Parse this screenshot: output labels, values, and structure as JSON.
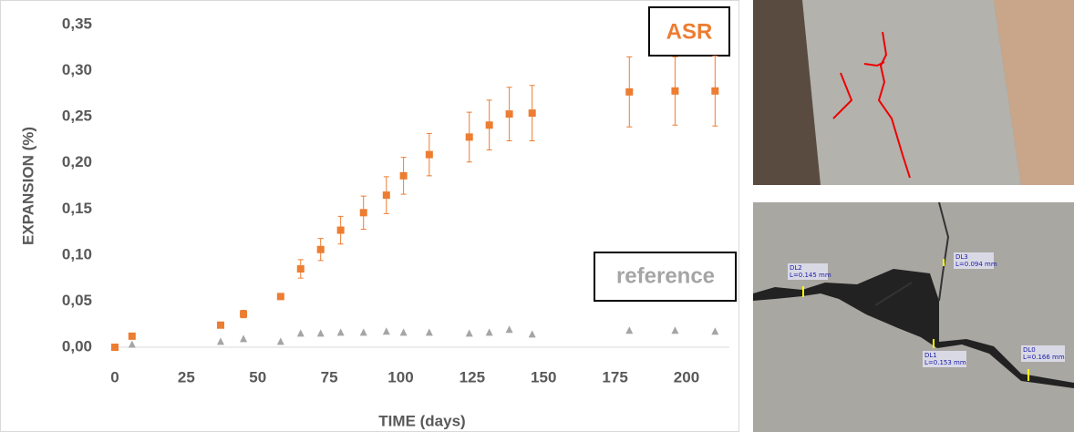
{
  "chart_data": {
    "type": "scatter",
    "x_label": "TIME (days)",
    "y_label": "EXPANSION (%)",
    "xlim": [
      0,
      215
    ],
    "xticks": [
      0,
      25,
      50,
      75,
      100,
      125,
      150,
      175,
      200
    ],
    "ylim": [
      0,
      0.35
    ],
    "yticks": [
      {
        "value": 0,
        "label": "0,00"
      },
      {
        "value": 0.05,
        "label": "0,05"
      },
      {
        "value": 0.1,
        "label": "0,10"
      },
      {
        "value": 0.15,
        "label": "0,15"
      },
      {
        "value": 0.2,
        "label": "0,20"
      },
      {
        "value": 0.25,
        "label": "0,25"
      },
      {
        "value": 0.3,
        "label": "0,30"
      },
      {
        "value": 0.35,
        "label": "0,35"
      }
    ],
    "grid": false,
    "series": [
      {
        "name": "ASR",
        "color": "#ed7d31",
        "marker": "square",
        "x": [
          0,
          6,
          37,
          45,
          58,
          65,
          72,
          79,
          87,
          95,
          101,
          110,
          124,
          131,
          138,
          146,
          180,
          196,
          210
        ],
        "values": [
          0,
          0.012,
          0.024,
          0.036,
          0.055,
          0.085,
          0.106,
          0.127,
          0.146,
          0.165,
          0.186,
          0.209,
          0.228,
          0.241,
          0.253,
          0.254,
          0.277,
          0.278,
          0.278
        ],
        "errors": [
          0.001,
          0.002,
          0.002,
          0.004,
          0.002,
          0.01,
          0.012,
          0.015,
          0.018,
          0.02,
          0.02,
          0.023,
          0.027,
          0.027,
          0.029,
          0.03,
          0.038,
          0.037,
          0.038
        ]
      },
      {
        "name": "reference",
        "color": "#a5a5a5",
        "marker": "triangle",
        "x": [
          6,
          37,
          45,
          58,
          65,
          72,
          79,
          87,
          95,
          101,
          110,
          124,
          131,
          138,
          146,
          180,
          196,
          210
        ],
        "values": [
          0.003,
          0.006,
          0.009,
          0.006,
          0.015,
          0.015,
          0.016,
          0.016,
          0.017,
          0.016,
          0.016,
          0.015,
          0.016,
          0.019,
          0.014,
          0.018,
          0.018,
          0.017
        ]
      }
    ]
  },
  "photo_labels": [
    {
      "id": "DL2",
      "length": "L=0.145 mm"
    },
    {
      "id": "DL3",
      "length": "L=0.094 mm"
    },
    {
      "id": "DL1",
      "length": "L=0.153 mm"
    },
    {
      "id": "DL0",
      "length": "L=0.166 mm"
    }
  ]
}
